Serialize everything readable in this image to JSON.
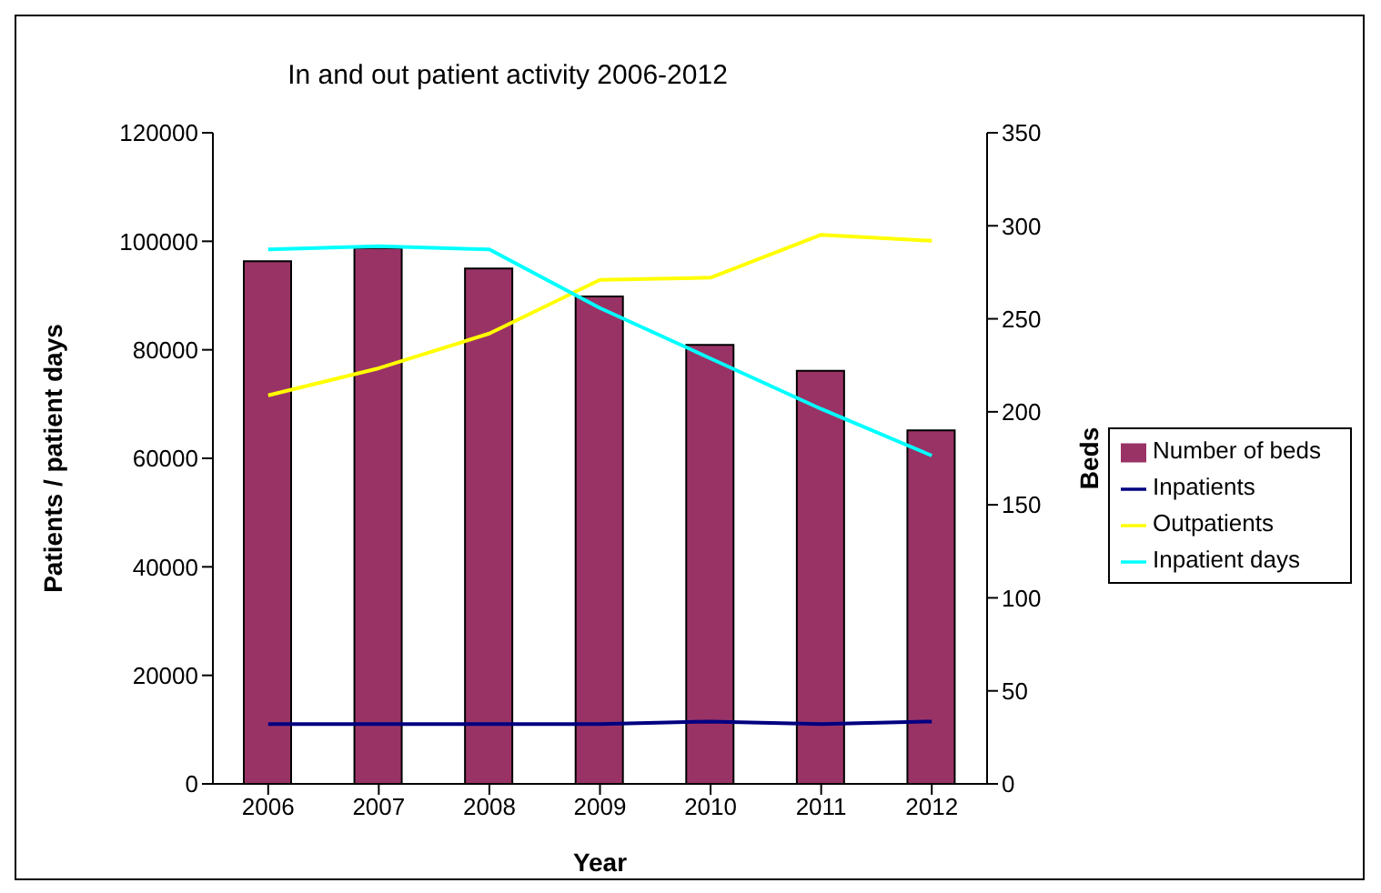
{
  "chart_data": {
    "type": "line",
    "title": "In and out patient activity 2006-2012",
    "xlabel": "Year",
    "ylabel": "Patients / patient days",
    "y2label": "Beds",
    "categories": [
      "2006",
      "2007",
      "2008",
      "2009",
      "2010",
      "2011",
      "2012"
    ],
    "series": [
      {
        "name": "Number of beds",
        "type": "bar",
        "axis": "y2",
        "color": "#993366",
        "values": [
          281,
          288,
          277,
          262,
          236,
          222,
          190
        ]
      },
      {
        "name": "Inpatients",
        "color": "#000080",
        "values": [
          11000,
          11000,
          11000,
          11000,
          11500,
          11000,
          11500
        ]
      },
      {
        "name": "Outpatients",
        "color": "#ffff00",
        "values": [
          71600,
          76600,
          83000,
          92900,
          93300,
          101200,
          100100
        ]
      },
      {
        "name": "Inpatient days",
        "color": "#00ffff",
        "values": [
          98500,
          99100,
          98500,
          87700,
          78400,
          69100,
          60500
        ]
      }
    ],
    "ylim": [
      0,
      120000
    ],
    "yticks": [
      0,
      20000,
      40000,
      60000,
      80000,
      100000,
      120000
    ],
    "y2lim": [
      0,
      350
    ],
    "y2ticks": [
      0,
      50,
      100,
      150,
      200,
      250,
      300,
      350
    ],
    "grid": false,
    "legend": "right",
    "marker": "none",
    "line_style": "solid"
  }
}
